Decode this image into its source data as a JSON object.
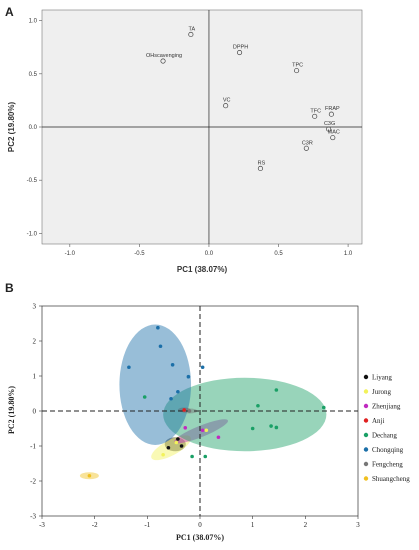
{
  "chart_data": [
    {
      "panel": "A",
      "type": "scatter",
      "xlabel": "PC1 (38.07%)",
      "ylabel": "PC2 (19.80%)",
      "xlim": [
        -1.2,
        1.1
      ],
      "ylim": [
        -1.1,
        1.1
      ],
      "xticks": [
        "-1.0",
        "-0.5",
        "0.0",
        "0.5",
        "1.0"
      ],
      "yticks": [
        "1.0",
        "0.5",
        "0.0",
        "-0.5",
        "-1.0"
      ],
      "grid": false,
      "points": [
        {
          "label": "TA",
          "x": -0.13,
          "y": 0.87
        },
        {
          "label": "OHscavenging",
          "x": -0.33,
          "y": 0.62
        },
        {
          "label": "DPPH",
          "x": 0.22,
          "y": 0.7
        },
        {
          "label": "TPC",
          "x": 0.63,
          "y": 0.53
        },
        {
          "label": "VC",
          "x": 0.12,
          "y": 0.2
        },
        {
          "label": "TFC",
          "x": 0.76,
          "y": 0.1
        },
        {
          "label": "FRAP",
          "x": 0.88,
          "y": 0.12
        },
        {
          "label": "C3G",
          "x": 0.86,
          "y": -0.02
        },
        {
          "label": "MAC",
          "x": 0.89,
          "y": -0.1
        },
        {
          "label": "C3R",
          "x": 0.7,
          "y": -0.2
        },
        {
          "label": "RS",
          "x": 0.37,
          "y": -0.39
        }
      ]
    },
    {
      "panel": "B",
      "type": "scatter",
      "xlabel": "PC1 (38.07%)",
      "ylabel": "PC2 (19.80%)",
      "xlim": [
        -3,
        3
      ],
      "ylim": [
        -3,
        3
      ],
      "xticks": [
        "-3",
        "-2",
        "-1",
        "0",
        "1",
        "2",
        "3"
      ],
      "yticks": [
        "3",
        "2",
        "1",
        "0",
        "-1",
        "-2",
        "-3"
      ],
      "grid": false,
      "legend_position": "right",
      "series": [
        {
          "name": "Liyang",
          "color": "#111111",
          "ellipse": {
            "cx": -0.47,
            "cy": -0.95,
            "rx": 0.2,
            "ry": 0.2,
            "angle": 0
          },
          "points": [
            [
              -0.6,
              -1.05
            ],
            [
              -0.42,
              -0.8
            ],
            [
              -0.35,
              -1.0
            ]
          ]
        },
        {
          "name": "Jurong",
          "color": "#f2f25a",
          "ellipse": {
            "cx": -0.55,
            "cy": -1.05,
            "rx": 0.42,
            "ry": 0.22,
            "angle": -28
          },
          "points": [
            [
              -0.7,
              -1.25
            ],
            [
              -0.45,
              -0.9
            ],
            [
              0.12,
              -0.55
            ]
          ]
        },
        {
          "name": "Zhenjiang",
          "color": "#c02ac0",
          "ellipse": {
            "cx": 0.02,
            "cy": -0.58,
            "rx": 0.55,
            "ry": 0.16,
            "angle": -22
          },
          "points": [
            [
              -0.28,
              -0.48
            ],
            [
              0.05,
              -0.55
            ],
            [
              0.35,
              -0.75
            ]
          ]
        },
        {
          "name": "Anji",
          "color": "#e02020",
          "ellipse": {
            "cx": -0.3,
            "cy": 0.03,
            "rx": 0.12,
            "ry": 0.07,
            "angle": 0
          },
          "points": [
            [
              -0.3,
              0.03
            ]
          ]
        },
        {
          "name": "Dechang",
          "color": "#1aa066",
          "ellipse": {
            "cx": 0.85,
            "cy": -0.1,
            "rx": 1.55,
            "ry": 1.05,
            "angle": 0
          },
          "points": [
            [
              2.35,
              0.1
            ],
            [
              1.45,
              0.6
            ],
            [
              1.1,
              0.15
            ],
            [
              1.0,
              -0.5
            ],
            [
              1.35,
              -0.43
            ],
            [
              1.45,
              -0.47
            ],
            [
              -0.15,
              -1.3
            ],
            [
              0.1,
              -1.3
            ],
            [
              -1.05,
              0.4
            ]
          ]
        },
        {
          "name": "Chongqing",
          "color": "#1b6fa8",
          "ellipse": {
            "cx": -0.85,
            "cy": 0.75,
            "rx": 0.68,
            "ry": 1.72,
            "angle": 0
          },
          "points": [
            [
              -0.8,
              2.38
            ],
            [
              -0.75,
              1.85
            ],
            [
              -1.35,
              1.25
            ],
            [
              -0.52,
              1.32
            ],
            [
              0.05,
              1.25
            ],
            [
              -0.22,
              0.98
            ],
            [
              -0.42,
              0.55
            ],
            [
              -0.55,
              0.35
            ]
          ]
        },
        {
          "name": "Fengcheng",
          "color": "#777777",
          "ellipse": {
            "cx": -0.2,
            "cy": 0.0,
            "rx": 0.15,
            "ry": 0.07,
            "angle": 0
          },
          "points": [
            [
              -0.2,
              0.0
            ]
          ]
        },
        {
          "name": "Shuangcheng",
          "color": "#f0c020",
          "ellipse": {
            "cx": -2.1,
            "cy": -1.85,
            "rx": 0.18,
            "ry": 0.1,
            "angle": 0
          },
          "points": [
            [
              -2.1,
              -1.85
            ]
          ]
        }
      ]
    }
  ],
  "panels": {
    "a": {
      "letter": "A"
    },
    "b": {
      "letter": "B"
    }
  }
}
